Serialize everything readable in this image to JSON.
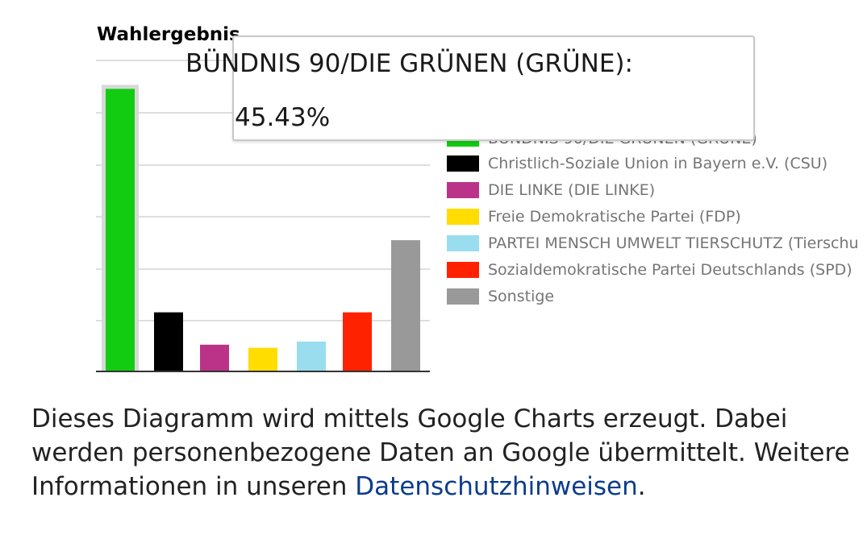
{
  "chart_data": {
    "type": "bar",
    "title": "Wahlergebnis",
    "categories": [
      "BÜNDNIS 90/DIE GRÜNEN (GRÜNE)",
      "Christlich-Soziale Union in Bayern e.V. (CSU)",
      "DIE LINKE (DIE LINKE)",
      "Freie Demokratische Partei (FDP)",
      "PARTEI MENSCH UMWELT TIERSCHUTZ (Tierschu",
      "Sozialdemokratische Partei Deutschlands (SPD)",
      "Sonstige"
    ],
    "values": [
      45.43,
      9.5,
      4.3,
      3.8,
      4.8,
      9.5,
      21.1
    ],
    "colors": [
      "#11cc11",
      "#000000",
      "#bb3388",
      "#ffdd00",
      "#99ddee",
      "#ff2200",
      "#999999"
    ],
    "ylim": [
      0,
      50
    ],
    "grid": true,
    "legend_position": "right",
    "highlighted_index": 0
  },
  "tooltip": {
    "line1": "BÜNDNIS 90/DIE GRÜNEN (GRÜNE):",
    "line2": "45.43%"
  },
  "notice": {
    "text": "Dieses Diagramm wird mittels Google Charts erzeugt. Dabei werden personenbezogene Daten an Google übermittelt. Weitere Informationen in unseren ",
    "link_text": "Datenschutzhinweisen",
    "suffix": "."
  }
}
